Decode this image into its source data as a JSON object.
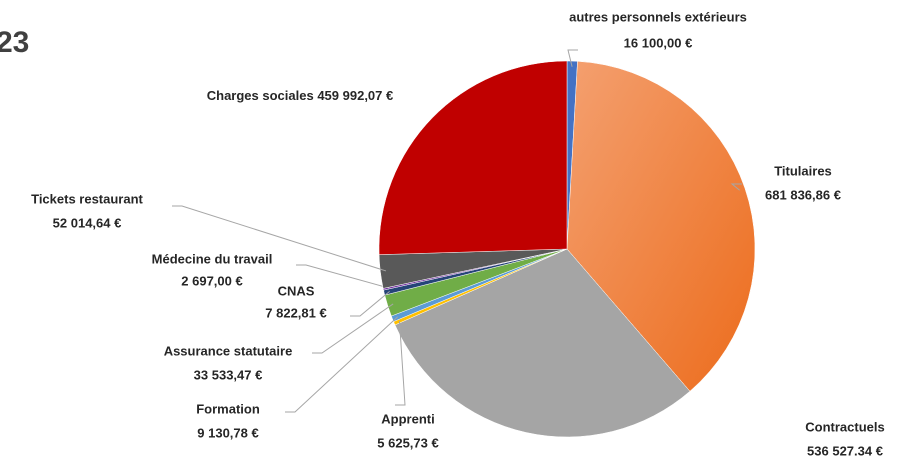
{
  "chart_data": {
    "type": "pie",
    "title": "23",
    "categories": [
      "autres personnels extérieurs",
      "Titulaires",
      "Contractuels",
      "Apprenti",
      "Formation",
      "Assurance statutaire",
      "CNAS",
      "Médecine du travail",
      "Tickets restaurant",
      "Charges sociales"
    ],
    "values": [
      16100.0,
      681836.86,
      536527.34,
      5625.73,
      9130.78,
      33533.47,
      7822.81,
      2697.0,
      52014.64,
      459992.07
    ],
    "value_labels": [
      "16 100,00 €",
      "681 836,86 €",
      "536 527.34 €",
      "5 625,73 €",
      "9 130,78 €",
      "33 533,47 €",
      "7 822,81 €",
      "2 697,00 €",
      "52 014,64 €",
      "459 992,07 €"
    ],
    "colors": [
      "#4472c4",
      "#ed7d31",
      "#a5a5a5",
      "#ffc000",
      "#5b9bd5",
      "#70ad47",
      "#264478",
      "#7030a0",
      "#595959",
      "#c00000"
    ]
  }
}
